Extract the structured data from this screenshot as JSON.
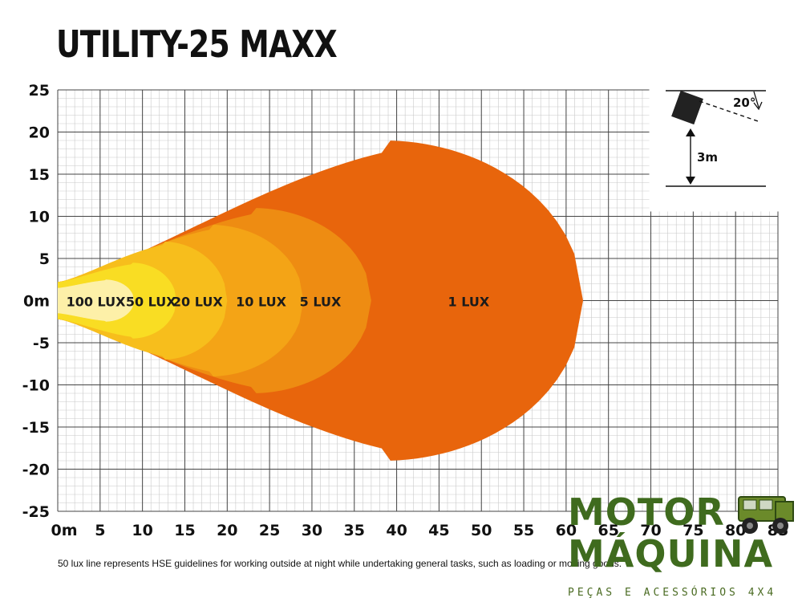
{
  "title": "UTILITY-25 MAXX",
  "caption": "50 lux line represents HSE guidelines for working outside at night while undertaking general tasks, such as loading or moving goods.",
  "chart_data": {
    "type": "area",
    "title": "UTILITY-25 MAXX",
    "xlabel": "",
    "ylabel": "",
    "xlim": [
      0,
      85
    ],
    "ylim": [
      -25,
      25
    ],
    "x_ticks": [
      "0m",
      "5",
      "10",
      "15",
      "20",
      "25",
      "30",
      "35",
      "40",
      "45",
      "50",
      "55",
      "60",
      "65",
      "70",
      "75",
      "80",
      "85"
    ],
    "y_ticks": [
      "25",
      "20",
      "15",
      "10",
      "5",
      "0m",
      "-5",
      "-10",
      "-15",
      "-20",
      "-25"
    ],
    "grid": true,
    "zones": [
      {
        "name": "1 LUX",
        "reach": 62,
        "half_width": 19,
        "color": "#e8650c"
      },
      {
        "name": "5 LUX",
        "reach": 37,
        "half_width": 11,
        "color": "#ee8c12"
      },
      {
        "name": "10 LUX",
        "reach": 29,
        "half_width": 9,
        "color": "#f4a416"
      },
      {
        "name": "20 LUX",
        "reach": 20,
        "half_width": 7,
        "color": "#f7be1c"
      },
      {
        "name": "50 LUX",
        "reach": 14,
        "half_width": 4.5,
        "color": "#f9dd23"
      },
      {
        "name": "100 LUX",
        "reach": 9,
        "half_width": 2.5,
        "color": "#fdf0a8"
      }
    ],
    "inset": {
      "angle": "20°",
      "height": "3m"
    }
  },
  "watermark": {
    "line1": "MOTOR",
    "line2": "MÁQUINA",
    "sub": "PEÇAS E ACESSÓRIOS 4X4",
    "brand_color": "#3f6b1e"
  }
}
